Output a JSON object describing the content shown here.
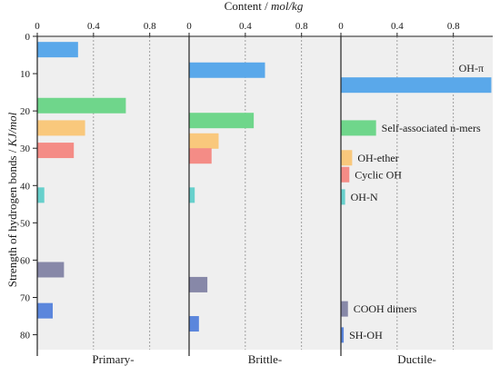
{
  "chart_data": {
    "type": "bar",
    "orientation": "horizontal",
    "top_axis_label": {
      "prefix": "Content / ",
      "unit": "mol/kg"
    },
    "ylabel": {
      "prefix": "Strength of hydrogen bonds / ",
      "unit": "KJ/mol"
    },
    "y_range": [
      0,
      84
    ],
    "y_ticks": [
      "0",
      "10",
      "20",
      "30",
      "40",
      "50",
      "60",
      "70",
      "80"
    ],
    "x_range": [
      0,
      1.08
    ],
    "x_ticks": [
      "0",
      "0.4",
      "0.8"
    ],
    "grid": "dashed vertical at 0.4 and 0.8",
    "categories": [
      {
        "key": "oh_pi",
        "label": "OH-π",
        "strength": 4,
        "color": "#5aa8ea"
      },
      {
        "key": "self_assoc",
        "label": "Self-associated n-mers",
        "strength": 20,
        "color": "#6fd68b"
      },
      {
        "key": "oh_ether",
        "label": "OH-ether",
        "strength": 25,
        "color": "#f9c87c"
      },
      {
        "key": "cyclic_oh",
        "label": "Cyclic OH",
        "strength": 30,
        "color": "#f48c86"
      },
      {
        "key": "oh_n",
        "label": "OH-N",
        "strength": 41,
        "color": "#67d0cc"
      },
      {
        "key": "cooh_dimers",
        "label": "COOH dimers",
        "strength": 62,
        "color": "#8788a8"
      },
      {
        "key": "sh_oh",
        "label": "SH-OH",
        "strength": 73,
        "color": "#5b86dc"
      }
    ],
    "panels": [
      {
        "label": "Primary-",
        "bars": [
          {
            "key": "oh_pi",
            "y": 1.5,
            "value": 0.29
          },
          {
            "key": "self_assoc",
            "y": 16.5,
            "value": 0.63
          },
          {
            "key": "oh_ether",
            "y": 22.5,
            "value": 0.34
          },
          {
            "key": "cyclic_oh",
            "y": 28.5,
            "value": 0.26
          },
          {
            "key": "oh_n",
            "y": 40.5,
            "value": 0.05
          },
          {
            "key": "cooh_dimers",
            "y": 60.5,
            "value": 0.19
          },
          {
            "key": "sh_oh",
            "y": 71.5,
            "value": 0.11
          }
        ]
      },
      {
        "label": "Brittle-",
        "bars": [
          {
            "key": "oh_pi",
            "y": 7.0,
            "value": 0.54
          },
          {
            "key": "self_assoc",
            "y": 20.5,
            "value": 0.46
          },
          {
            "key": "oh_ether",
            "y": 26.0,
            "value": 0.21
          },
          {
            "key": "cyclic_oh",
            "y": 30.0,
            "value": 0.16
          },
          {
            "key": "oh_n",
            "y": 40.5,
            "value": 0.04
          },
          {
            "key": "cooh_dimers",
            "y": 64.5,
            "value": 0.13
          },
          {
            "key": "sh_oh",
            "y": 75.0,
            "value": 0.07
          }
        ]
      },
      {
        "label": "Ductile-",
        "bars": [
          {
            "key": "oh_pi",
            "y": 11.0,
            "value": 1.07
          },
          {
            "key": "self_assoc",
            "y": 22.5,
            "value": 0.25
          },
          {
            "key": "oh_ether",
            "y": 30.5,
            "value": 0.08
          },
          {
            "key": "cyclic_oh",
            "y": 35.0,
            "value": 0.06
          },
          {
            "key": "oh_n",
            "y": 41.0,
            "value": 0.03
          },
          {
            "key": "cooh_dimers",
            "y": 71.0,
            "value": 0.05
          },
          {
            "key": "sh_oh",
            "y": 78.0,
            "value": 0.02
          }
        ]
      }
    ]
  }
}
